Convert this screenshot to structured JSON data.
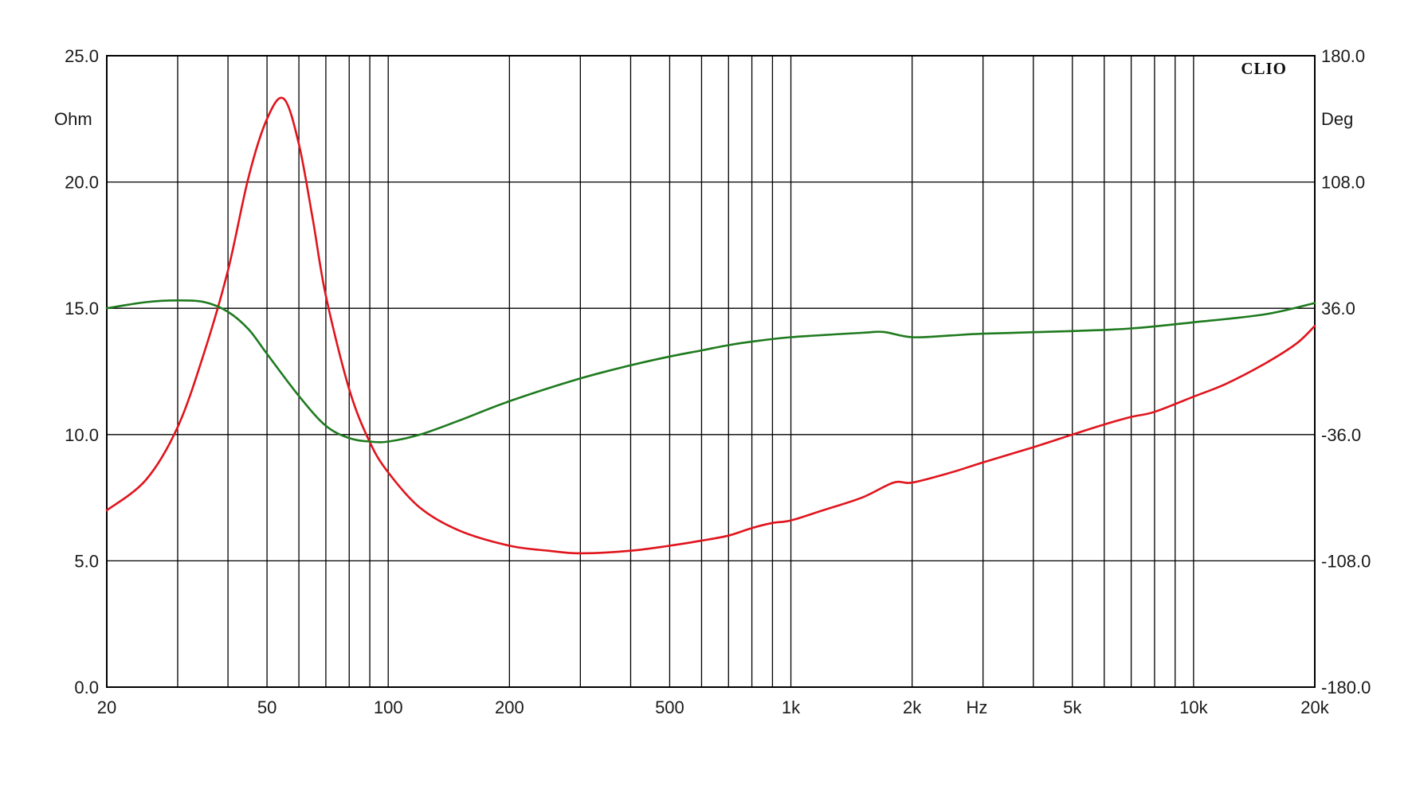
{
  "chart_data": {
    "type": "line",
    "brand": "CLIO",
    "x_unit_label": "Hz",
    "x_scale": "log",
    "xlim": [
      20,
      20000
    ],
    "ylim_left": [
      0,
      25
    ],
    "ylim_right": [
      -180,
      180
    ],
    "y_left_unit": "Ohm",
    "y_right_unit": "Deg",
    "grid": true,
    "x_ticks": [
      {
        "value": 20,
        "label": "20"
      },
      {
        "value": 50,
        "label": "50"
      },
      {
        "value": 100,
        "label": "100"
      },
      {
        "value": 200,
        "label": "200"
      },
      {
        "value": 500,
        "label": "500"
      },
      {
        "value": 1000,
        "label": "1k"
      },
      {
        "value": 2000,
        "label": "2k"
      },
      {
        "value": 5000,
        "label": "5k"
      },
      {
        "value": 10000,
        "label": "10k"
      },
      {
        "value": 20000,
        "label": "20k"
      }
    ],
    "y_left_ticks": [
      {
        "value": 0,
        "label": "0.0"
      },
      {
        "value": 5,
        "label": "5.0"
      },
      {
        "value": 10,
        "label": "10.0"
      },
      {
        "value": 15,
        "label": "15.0"
      },
      {
        "value": 20,
        "label": "20.0"
      },
      {
        "value": 25,
        "label": "25.0"
      }
    ],
    "y_right_ticks": [
      {
        "value": -180,
        "label": "-180.0"
      },
      {
        "value": -108,
        "label": "-108.0"
      },
      {
        "value": -36,
        "label": "-36.0"
      },
      {
        "value": 36,
        "label": "36.0"
      },
      {
        "value": 108,
        "label": "108.0"
      },
      {
        "value": 180,
        "label": "180.0"
      }
    ],
    "series": [
      {
        "axis": "left",
        "color": "#e0141c",
        "points": [
          [
            20,
            7.0
          ],
          [
            25,
            8.2
          ],
          [
            30,
            10.3
          ],
          [
            35,
            13.3
          ],
          [
            40,
            16.5
          ],
          [
            45,
            20.2
          ],
          [
            50,
            22.5
          ],
          [
            55,
            23.3
          ],
          [
            60,
            21.5
          ],
          [
            65,
            18.5
          ],
          [
            70,
            15.5
          ],
          [
            80,
            11.8
          ],
          [
            90,
            9.7
          ],
          [
            100,
            8.5
          ],
          [
            120,
            7.1
          ],
          [
            150,
            6.2
          ],
          [
            200,
            5.6
          ],
          [
            250,
            5.4
          ],
          [
            300,
            5.3
          ],
          [
            400,
            5.4
          ],
          [
            500,
            5.6
          ],
          [
            600,
            5.8
          ],
          [
            700,
            6.0
          ],
          [
            800,
            6.3
          ],
          [
            900,
            6.5
          ],
          [
            1000,
            6.6
          ],
          [
            1200,
            7.0
          ],
          [
            1500,
            7.5
          ],
          [
            1800,
            8.1
          ],
          [
            2000,
            8.1
          ],
          [
            2500,
            8.5
          ],
          [
            3000,
            8.9
          ],
          [
            4000,
            9.5
          ],
          [
            5000,
            10.0
          ],
          [
            6000,
            10.4
          ],
          [
            7000,
            10.7
          ],
          [
            8000,
            10.9
          ],
          [
            10000,
            11.5
          ],
          [
            12000,
            12.0
          ],
          [
            15000,
            12.8
          ],
          [
            18000,
            13.6
          ],
          [
            20000,
            14.3
          ]
        ]
      },
      {
        "axis": "right",
        "color": "#1e7a1e",
        "points": [
          [
            20,
            36.0
          ],
          [
            25,
            39.5
          ],
          [
            30,
            40.5
          ],
          [
            35,
            39.5
          ],
          [
            40,
            34.0
          ],
          [
            45,
            24.0
          ],
          [
            50,
            10.0
          ],
          [
            60,
            -14.0
          ],
          [
            70,
            -31.0
          ],
          [
            80,
            -38.0
          ],
          [
            90,
            -40.0
          ],
          [
            100,
            -40.0
          ],
          [
            120,
            -36.0
          ],
          [
            150,
            -28.0
          ],
          [
            200,
            -17.0
          ],
          [
            300,
            -4.0
          ],
          [
            400,
            3.5
          ],
          [
            500,
            8.5
          ],
          [
            600,
            12.0
          ],
          [
            700,
            15.0
          ],
          [
            800,
            17.0
          ],
          [
            1000,
            19.5
          ],
          [
            1500,
            22.0
          ],
          [
            1700,
            22.5
          ],
          [
            2000,
            19.5
          ],
          [
            2500,
            20.5
          ],
          [
            3000,
            21.5
          ],
          [
            5000,
            23.0
          ],
          [
            7000,
            24.5
          ],
          [
            10000,
            28.0
          ],
          [
            15000,
            32.5
          ],
          [
            20000,
            39.0
          ]
        ]
      }
    ]
  }
}
